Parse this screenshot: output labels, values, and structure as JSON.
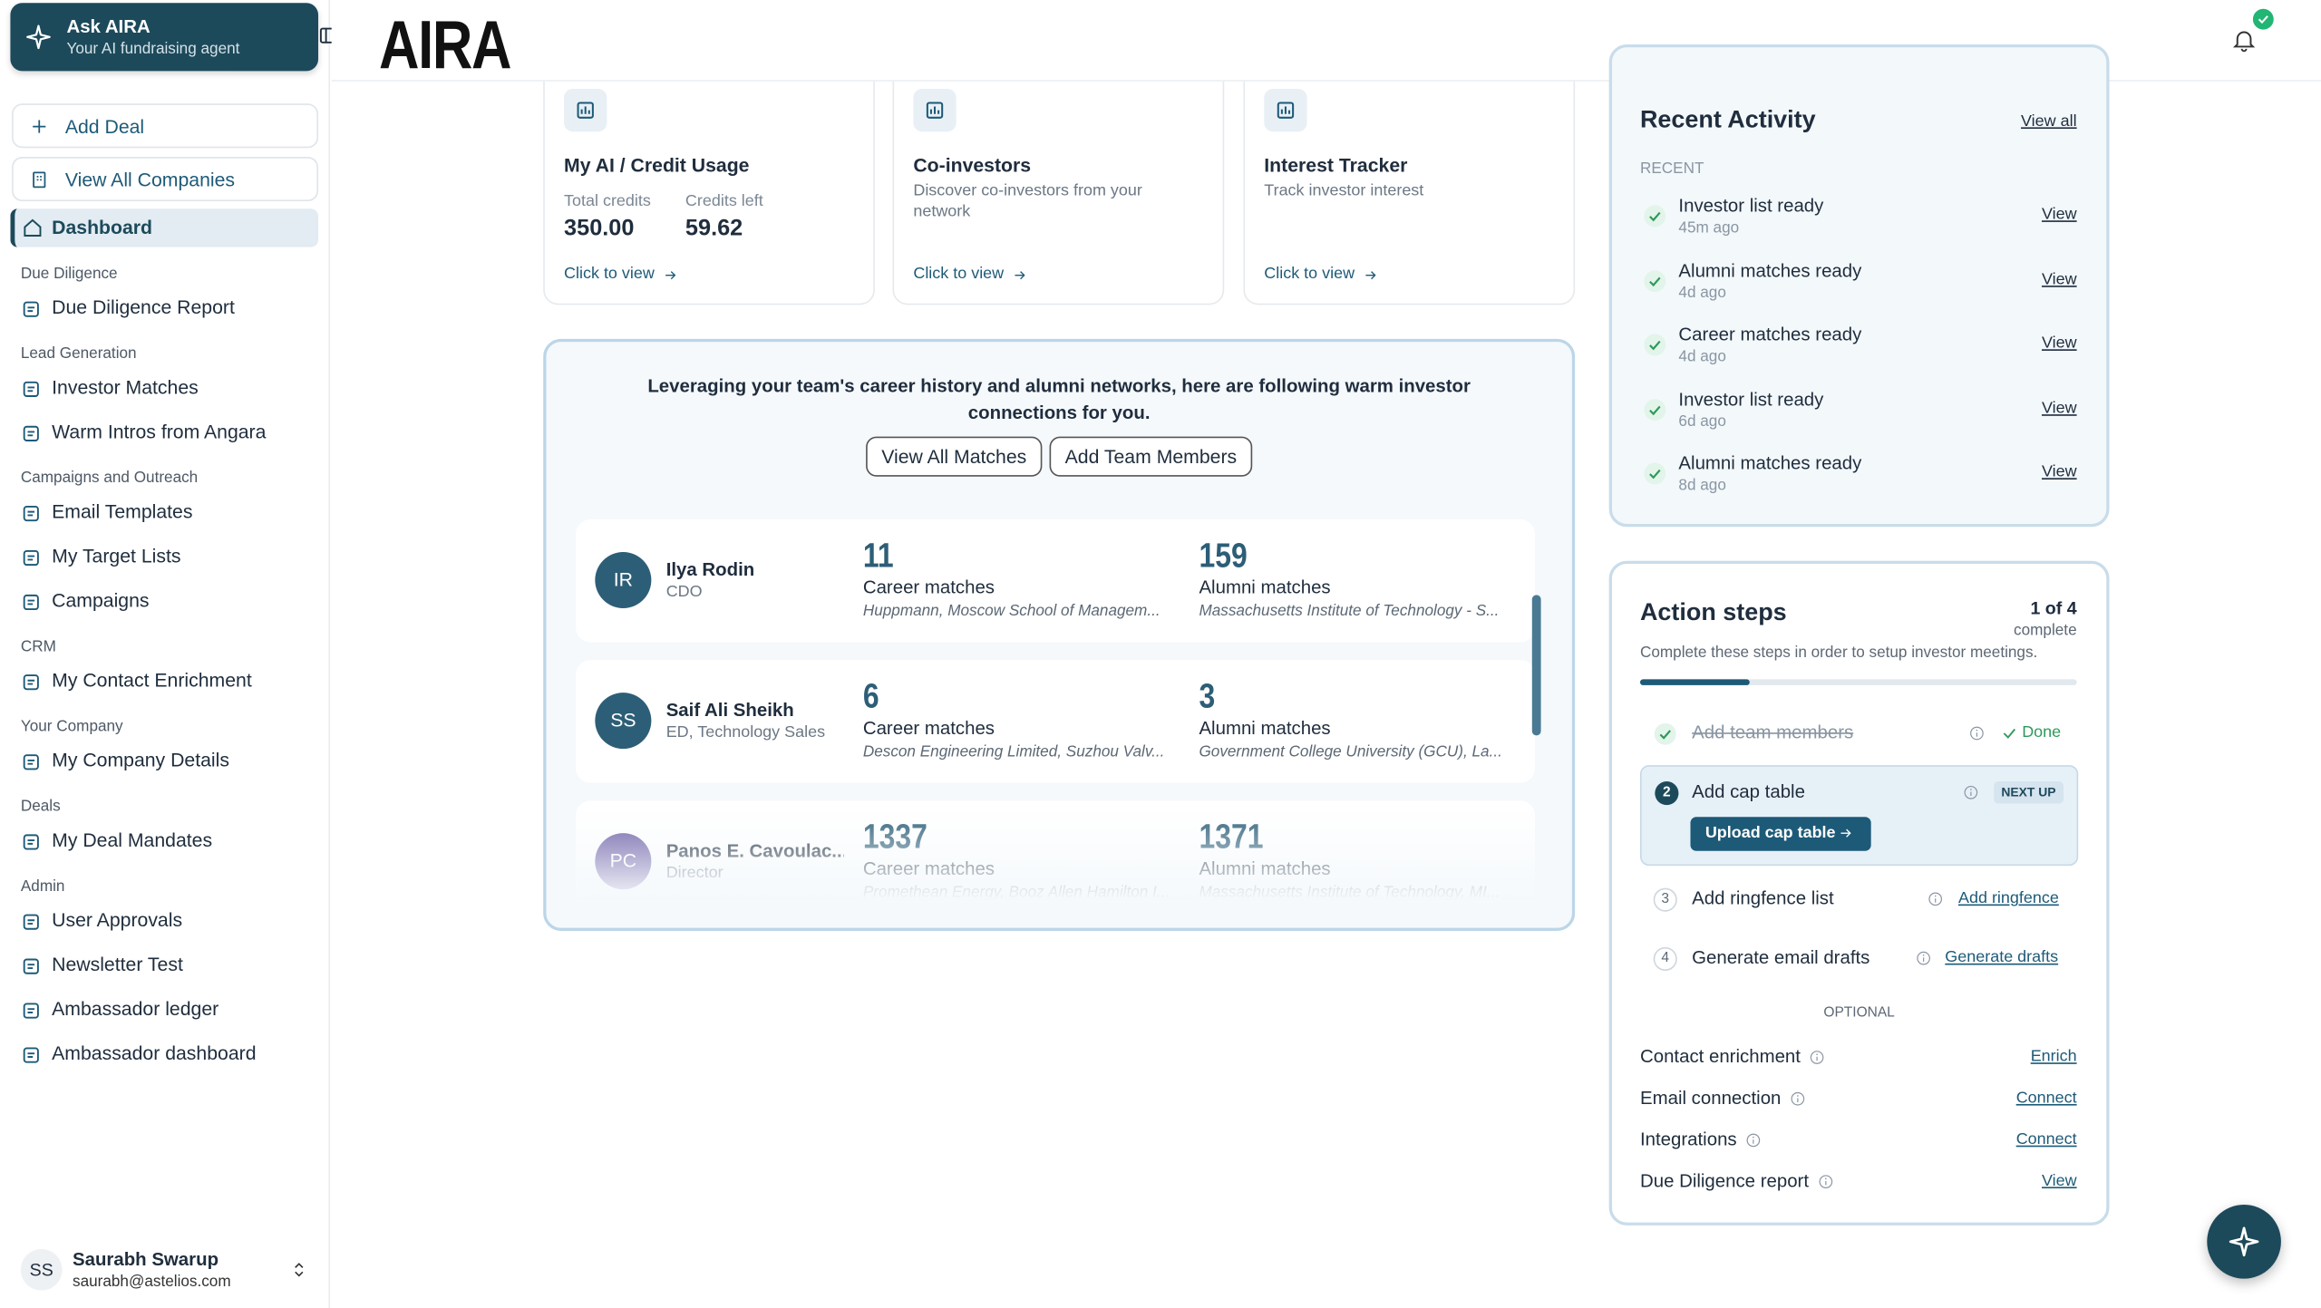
{
  "sidebar": {
    "agent": {
      "title": "Ask AIRA",
      "subtitle": "Your AI fundraising agent"
    },
    "actions": [
      "Add Deal",
      "View All Companies"
    ],
    "dashboard": "Dashboard",
    "sections": [
      {
        "heading": "Due Diligence",
        "items": [
          "Due Diligence Report"
        ]
      },
      {
        "heading": "Lead Generation",
        "items": [
          "Investor Matches",
          "Warm Intros from Angara"
        ]
      },
      {
        "heading": "Campaigns and Outreach",
        "items": [
          "Email Templates",
          "My Target Lists",
          "Campaigns"
        ]
      },
      {
        "heading": "CRM",
        "items": [
          "My Contact Enrichment"
        ]
      },
      {
        "heading": "Your Company",
        "items": [
          "My Company Details"
        ]
      },
      {
        "heading": "Deals",
        "items": [
          "My Deal Mandates"
        ]
      },
      {
        "heading": "Admin",
        "items": [
          "User Approvals",
          "Newsletter Test",
          "Ambassador ledger",
          "Ambassador dashboard"
        ]
      }
    ],
    "user": {
      "initials": "SS",
      "name": "Saurabh Swarup",
      "email": "saurabh@astelios.com"
    }
  },
  "header": {
    "logo": "AIRA"
  },
  "cards": [
    {
      "title": "My AI / Credit Usage",
      "stats": [
        {
          "label": "Total credits",
          "value": "350.00"
        },
        {
          "label": "Credits left",
          "value": "59.62"
        }
      ],
      "link": "Click to view"
    },
    {
      "title": "Co-investors",
      "description": "Discover co-investors from your network",
      "link": "Click to view"
    },
    {
      "title": "Interest Tracker",
      "description": "Track investor interest",
      "link": "Click to view"
    }
  ],
  "warm_intros": {
    "message": "Leveraging your team's career history and alumni networks, here are following warm investor connections for you.",
    "buttons": [
      "View All Matches",
      "Add Team Members"
    ],
    "people": [
      {
        "initials": "IR",
        "name": "Ilya Rodin",
        "role": "CDO",
        "career_count": 11,
        "career_label": "Career matches",
        "career_detail": "Huppmann, Moscow School of Managem...",
        "alumni_count": 159,
        "alumni_label": "Alumni matches",
        "alumni_detail": "Massachusetts Institute of Technology - S..."
      },
      {
        "initials": "SS",
        "name": "Saif Ali Sheikh",
        "role": "ED, Technology Sales",
        "career_count": 6,
        "career_label": "Career matches",
        "career_detail": "Descon Engineering Limited, Suzhou Valv...",
        "alumni_count": 3,
        "alumni_label": "Alumni matches",
        "alumni_detail": "Government College University (GCU), La..."
      },
      {
        "initials": "PC",
        "name": "Panos E. Cavoulac...",
        "role": "Director",
        "career_count": 1337,
        "career_label": "Career matches",
        "career_detail": "Promethean Energy, Booz Allen Hamilton I...",
        "alumni_count": 1371,
        "alumni_label": "Alumni matches",
        "alumni_detail": "Massachusetts Institute of Technology, MI..."
      }
    ]
  },
  "recent_activity": {
    "title": "Recent Activity",
    "view_all": "View all",
    "label": "RECENT",
    "items": [
      {
        "title": "Investor list ready",
        "time": "45m ago",
        "action": "View"
      },
      {
        "title": "Alumni matches ready",
        "time": "4d ago",
        "action": "View"
      },
      {
        "title": "Career matches ready",
        "time": "4d ago",
        "action": "View"
      },
      {
        "title": "Investor list ready",
        "time": "6d ago",
        "action": "View"
      },
      {
        "title": "Alumni matches ready",
        "time": "8d ago",
        "action": "View"
      }
    ]
  },
  "action_steps": {
    "title": "Action steps",
    "progress": "1 of 4",
    "progress_label": "complete",
    "description": "Complete these steps in order to setup investor meetings.",
    "steps": [
      {
        "title": "Add team members",
        "status": "Done"
      },
      {
        "number": 2,
        "title": "Add cap table",
        "badge": "NEXT UP",
        "button": "Upload cap table"
      },
      {
        "number": 3,
        "title": "Add ringfence list",
        "action": "Add ringfence"
      },
      {
        "number": 4,
        "title": "Generate email drafts",
        "action": "Generate drafts"
      }
    ],
    "optional_label": "OPTIONAL",
    "optional": [
      {
        "title": "Contact enrichment",
        "action": "Enrich"
      },
      {
        "title": "Email connection",
        "action": "Connect"
      },
      {
        "title": "Integrations",
        "action": "Connect"
      },
      {
        "title": "Due Diligence report",
        "action": "View"
      }
    ]
  }
}
